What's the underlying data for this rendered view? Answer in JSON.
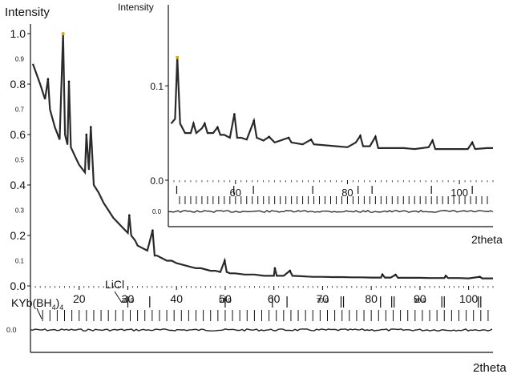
{
  "colors": {
    "curve": "#2a2a2a",
    "axis": "#111111",
    "peak_marker": "#d4b000",
    "background": "#ffffff"
  },
  "chart_data": [
    {
      "type": "line",
      "title": "",
      "ylabel": "Intensity",
      "xlabel": "2theta",
      "xlim": [
        10,
        105
      ],
      "ylim": [
        0,
        1.0
      ],
      "x_ticks": [
        "20",
        "30",
        "40",
        "50",
        "60",
        "70",
        "80",
        "90",
        "100"
      ],
      "x_ticks_small": [
        "30.0",
        "50.0",
        "70.0",
        "90.0"
      ],
      "y_ticks": [
        "1.0",
        "0.8",
        "0.6",
        "0.4",
        "0.2",
        "0.0"
      ],
      "y_ticks_small": [
        "0.9",
        "0.7",
        "0.5",
        "0.3",
        "0.1"
      ],
      "diff_zero_label": "0.0",
      "annotations": {
        "phase1_prefix": "KYb(BH",
        "phase1_sub": "4",
        "phase1_close": ")",
        "phase1_sub2": "4",
        "phase2": "LiCl"
      },
      "series": [
        {
          "values": [
            [
              10.5,
              0.88
            ],
            [
              12,
              0.8
            ],
            [
              13,
              0.74
            ],
            [
              13.6,
              0.82
            ],
            [
              14,
              0.7
            ],
            [
              15,
              0.63
            ],
            [
              16,
              0.58
            ],
            [
              16.7,
              1.0
            ],
            [
              17.1,
              0.6
            ],
            [
              17.6,
              0.56
            ],
            [
              17.9,
              0.81
            ],
            [
              18.3,
              0.55
            ],
            [
              19,
              0.52
            ],
            [
              20,
              0.48
            ],
            [
              21.2,
              0.45
            ],
            [
              21.5,
              0.6
            ],
            [
              22,
              0.46
            ],
            [
              22.4,
              0.63
            ],
            [
              23,
              0.4
            ],
            [
              24,
              0.37
            ],
            [
              25,
              0.33
            ],
            [
              26,
              0.3
            ],
            [
              27,
              0.27
            ],
            [
              28,
              0.25
            ],
            [
              29,
              0.23
            ],
            [
              30,
              0.21
            ],
            [
              30.3,
              0.28
            ],
            [
              30.7,
              0.2
            ],
            [
              31.5,
              0.18
            ],
            [
              32,
              0.16
            ],
            [
              33,
              0.15
            ],
            [
              34,
              0.14
            ],
            [
              35.1,
              0.22
            ],
            [
              35.5,
              0.12
            ],
            [
              36,
              0.12
            ],
            [
              37,
              0.11
            ],
            [
              38,
              0.1
            ],
            [
              39,
              0.1
            ],
            [
              40,
              0.09
            ],
            [
              41,
              0.085
            ],
            [
              42,
              0.08
            ],
            [
              43,
              0.075
            ],
            [
              44,
              0.07
            ],
            [
              45,
              0.07
            ],
            [
              46,
              0.065
            ],
            [
              47,
              0.06
            ],
            [
              48,
              0.06
            ],
            [
              49,
              0.055
            ],
            [
              49.9,
              0.1
            ],
            [
              50.3,
              0.055
            ],
            [
              51,
              0.05
            ],
            [
              52,
              0.05
            ],
            [
              54,
              0.045
            ],
            [
              56,
              0.045
            ],
            [
              58,
              0.04
            ],
            [
              60,
              0.04
            ],
            [
              60.2,
              0.07
            ],
            [
              60.6,
              0.04
            ],
            [
              62,
              0.04
            ],
            [
              63.3,
              0.06
            ],
            [
              63.8,
              0.04
            ],
            [
              66,
              0.038
            ],
            [
              68,
              0.036
            ],
            [
              70,
              0.036
            ],
            [
              72,
              0.035
            ],
            [
              74,
              0.035
            ],
            [
              76,
              0.034
            ],
            [
              78,
              0.034
            ],
            [
              80,
              0.033
            ],
            [
              82,
              0.033
            ],
            [
              82.3,
              0.045
            ],
            [
              82.8,
              0.033
            ],
            [
              84,
              0.033
            ],
            [
              85,
              0.044
            ],
            [
              85.5,
              0.032
            ],
            [
              88,
              0.032
            ],
            [
              90,
              0.032
            ],
            [
              92,
              0.031
            ],
            [
              95,
              0.031
            ],
            [
              95.3,
              0.04
            ],
            [
              95.8,
              0.031
            ],
            [
              98,
              0.031
            ],
            [
              100,
              0.03
            ],
            [
              102.3,
              0.036
            ],
            [
              102.8,
              0.03
            ],
            [
              105,
              0.03
            ]
          ]
        }
      ],
      "reflection_ticks_phase1": [
        12.5,
        14,
        15.5,
        17,
        18.5,
        20,
        21.5,
        23,
        24.5,
        26,
        27.5,
        29,
        30.5,
        32,
        33.5,
        35,
        36.5,
        38,
        39.5,
        41,
        42.5,
        44,
        45.5,
        47,
        48.5,
        50,
        51.5,
        53,
        54.5,
        56,
        57.5,
        59,
        60.5,
        62,
        63.5,
        65,
        66.5,
        68,
        69.5,
        71,
        72.5,
        74,
        75.5,
        77,
        78.5,
        80,
        81.5,
        83,
        84.5,
        86,
        87.5,
        89,
        90.5,
        92,
        93.5,
        95,
        96.5,
        98,
        99.5,
        101,
        102.5,
        104
      ],
      "reflection_ticks_phase2": [
        30,
        34.5,
        50,
        59.7,
        62.7,
        73.8,
        74.3,
        81.9,
        84.2,
        84.7,
        94.5,
        95,
        102,
        102.5
      ]
    },
    {
      "type": "line",
      "title": "",
      "ylabel": "Intensity",
      "xlabel": "2theta",
      "xlim": [
        48,
        106
      ],
      "ylim": [
        0,
        0.14
      ],
      "x_ticks": [
        "60",
        "80",
        "100"
      ],
      "y_ticks": [
        "0.1",
        "0.0"
      ],
      "diff_zero_label": "0.0",
      "series": [
        {
          "values": [
            [
              48.5,
              0.06
            ],
            [
              49.2,
              0.065
            ],
            [
              49.6,
              0.13
            ],
            [
              50.1,
              0.06
            ],
            [
              51,
              0.05
            ],
            [
              52,
              0.05
            ],
            [
              52.5,
              0.06
            ],
            [
              53,
              0.05
            ],
            [
              54,
              0.055
            ],
            [
              54.5,
              0.06
            ],
            [
              55,
              0.05
            ],
            [
              56,
              0.05
            ],
            [
              56.8,
              0.056
            ],
            [
              57.3,
              0.048
            ],
            [
              58,
              0.048
            ],
            [
              59,
              0.045
            ],
            [
              59.8,
              0.07
            ],
            [
              60.3,
              0.045
            ],
            [
              61,
              0.045
            ],
            [
              62,
              0.043
            ],
            [
              63.3,
              0.063
            ],
            [
              63.8,
              0.045
            ],
            [
              65,
              0.042
            ],
            [
              66,
              0.046
            ],
            [
              67,
              0.04
            ],
            [
              68,
              0.042
            ],
            [
              69.5,
              0.045
            ],
            [
              70,
              0.04
            ],
            [
              72,
              0.038
            ],
            [
              73.5,
              0.043
            ],
            [
              74,
              0.038
            ],
            [
              76,
              0.037
            ],
            [
              78,
              0.036
            ],
            [
              80,
              0.035
            ],
            [
              81.5,
              0.04
            ],
            [
              82.3,
              0.047
            ],
            [
              82.8,
              0.036
            ],
            [
              84,
              0.036
            ],
            [
              85,
              0.046
            ],
            [
              85.5,
              0.034
            ],
            [
              88,
              0.034
            ],
            [
              90,
              0.034
            ],
            [
              92,
              0.033
            ],
            [
              94.5,
              0.035
            ],
            [
              95.2,
              0.042
            ],
            [
              95.7,
              0.033
            ],
            [
              98,
              0.033
            ],
            [
              100,
              0.033
            ],
            [
              101.5,
              0.033
            ],
            [
              102.3,
              0.04
            ],
            [
              102.8,
              0.033
            ],
            [
              105,
              0.034
            ],
            [
              106,
              0.034
            ]
          ]
        }
      ],
      "reflection_ticks_phase1": [
        50,
        51,
        52,
        53,
        54,
        55,
        56,
        57,
        58,
        59,
        60,
        61,
        62,
        63,
        64,
        65,
        66,
        67,
        68,
        69,
        70,
        71,
        72,
        73,
        74,
        75,
        76,
        77,
        78,
        79,
        80,
        81,
        82,
        83,
        84,
        85,
        86,
        87,
        88,
        89,
        90,
        91,
        92,
        93,
        94,
        95,
        96,
        97,
        98,
        99,
        100,
        101,
        102,
        103,
        104,
        105
      ],
      "reflection_ticks_phase2": [
        49.5,
        59.7,
        63.2,
        73.8,
        81.9,
        84.4,
        95,
        102.3
      ]
    }
  ]
}
